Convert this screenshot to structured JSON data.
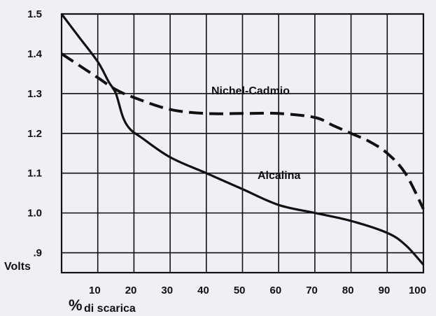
{
  "chart_data": {
    "type": "line",
    "xlabel_symbol": "%",
    "xlabel_text": "di scarica",
    "ylabel": "Volts",
    "xlim": [
      0,
      100
    ],
    "ylim": [
      0.85,
      1.5
    ],
    "x_ticks": [
      10,
      20,
      30,
      40,
      50,
      60,
      70,
      80,
      90,
      100
    ],
    "y_ticks": [
      {
        "value": 1.5,
        "label": "1.5"
      },
      {
        "value": 1.4,
        "label": "1.4"
      },
      {
        "value": 1.3,
        "label": "1.3"
      },
      {
        "value": 1.2,
        "label": "1.2"
      },
      {
        "value": 1.1,
        "label": "1.1"
      },
      {
        "value": 1.0,
        "label": "1.0"
      },
      {
        "value": 0.9,
        "label": ".9"
      }
    ],
    "grid": true,
    "series": [
      {
        "name": "Alcalina",
        "style": "solid",
        "color": "#111111",
        "x": [
          0,
          5,
          10,
          13,
          15,
          17,
          19,
          22,
          30,
          40,
          50,
          60,
          70,
          80,
          90,
          95,
          100
        ],
        "y": [
          1.5,
          1.44,
          1.38,
          1.33,
          1.3,
          1.24,
          1.21,
          1.19,
          1.14,
          1.1,
          1.06,
          1.02,
          1.0,
          0.98,
          0.95,
          0.92,
          0.87
        ]
      },
      {
        "name": "Nichel-Cadmio",
        "style": "dashed",
        "color": "#111111",
        "x": [
          0,
          5,
          10,
          15,
          20,
          30,
          40,
          50,
          60,
          70,
          75,
          80,
          85,
          90,
          95,
          100
        ],
        "y": [
          1.4,
          1.37,
          1.34,
          1.31,
          1.29,
          1.26,
          1.25,
          1.25,
          1.25,
          1.24,
          1.22,
          1.2,
          1.18,
          1.15,
          1.1,
          1.01
        ]
      }
    ]
  }
}
